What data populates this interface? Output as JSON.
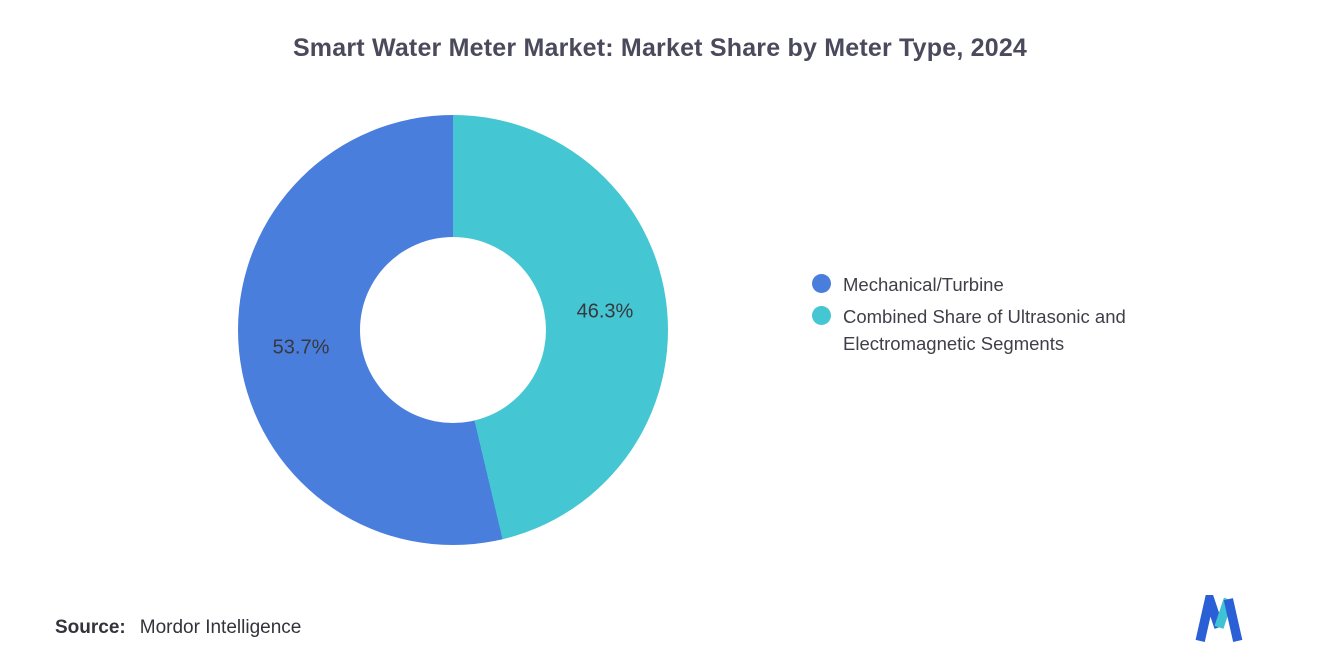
{
  "title": "Smart Water Meter Market: Market Share by Meter Type, 2024",
  "source": {
    "label": "Source:",
    "value": "Mordor Intelligence"
  },
  "logo": {
    "name": "mordor-intelligence-logo",
    "blue": "#2B5FD6",
    "teal": "#3EC3D5"
  },
  "chart_data": {
    "type": "pie",
    "donut": true,
    "title": "Smart Water Meter Market: Market Share by Meter Type, 2024",
    "start_angle_deg": 0,
    "direction": "clockwise",
    "legend_position": "right",
    "background": "#ffffff",
    "series": [
      {
        "name": "Combined Share of Ultrasonic and Electromagnetic Segments",
        "value": 46.3,
        "label": "46.3%",
        "color": "#45C6D3"
      },
      {
        "name": "Mechanical/Turbine",
        "value": 53.7,
        "label": "53.7%",
        "color": "#4A7EDD"
      }
    ],
    "legend_order": [
      "Mechanical/Turbine",
      "Combined Share of Ultrasonic and Electromagnetic Segments"
    ]
  }
}
